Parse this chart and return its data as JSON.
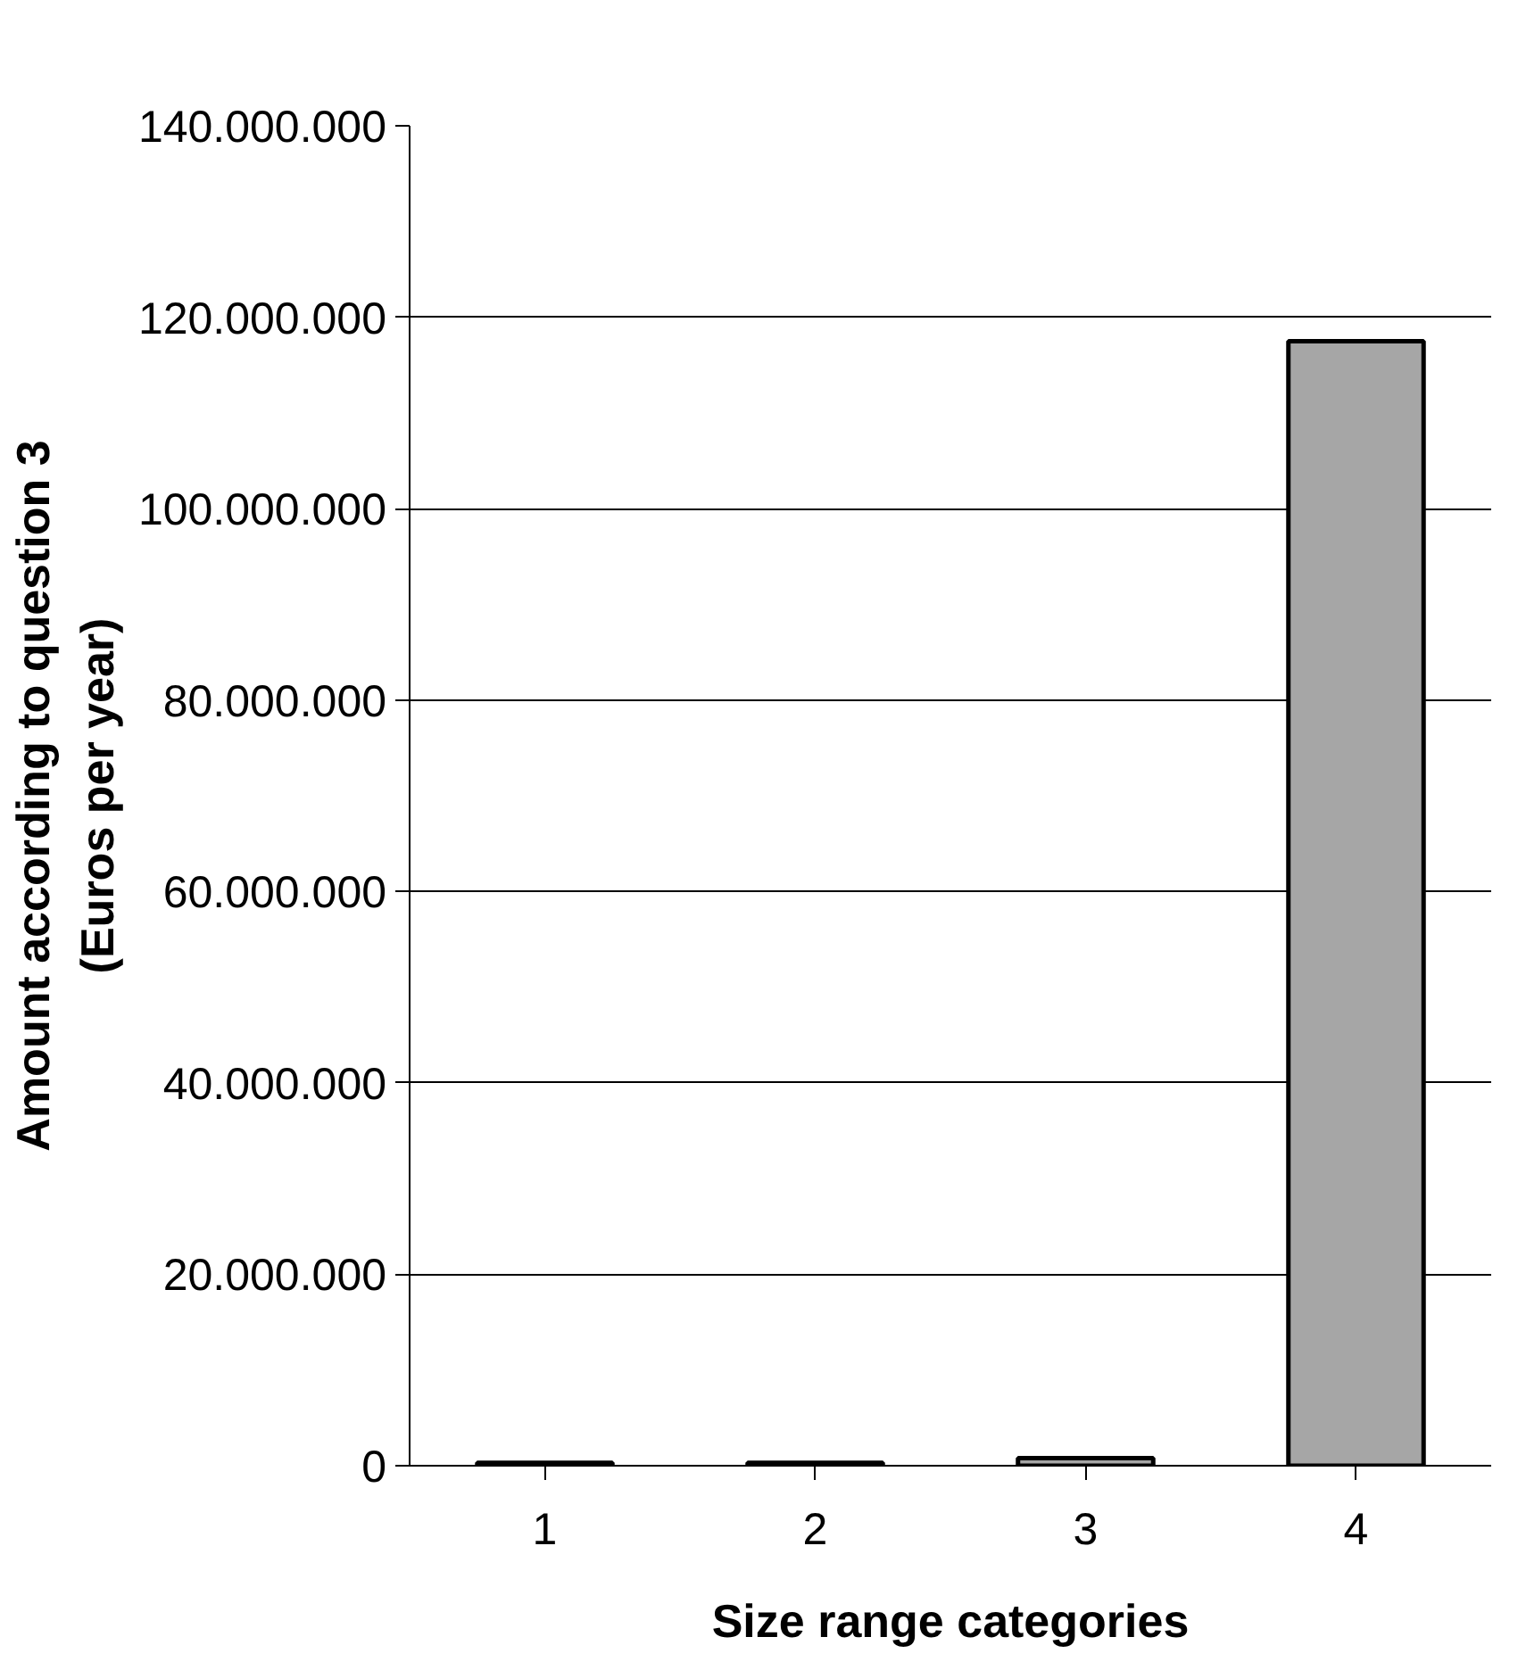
{
  "chart_data": {
    "type": "bar",
    "xlabel": "Size range categories",
    "ylabel": "Amount according to question 3\n(Euros per year)",
    "categories": [
      "1",
      "2",
      "3",
      "4"
    ],
    "values": [
      300000,
      300000,
      800000,
      117500000
    ],
    "color": "#a6a6a6",
    "ylim": [
      0,
      140000000
    ],
    "yticks": [
      {
        "value": 0,
        "label": "0"
      },
      {
        "value": 20000000,
        "label": "20.000.000"
      },
      {
        "value": 40000000,
        "label": "40.000.000"
      },
      {
        "value": 60000000,
        "label": "60.000.000"
      },
      {
        "value": 80000000,
        "label": "80.000.000"
      },
      {
        "value": 100000000,
        "label": "100.000.000"
      },
      {
        "value": 120000000,
        "label": "120.000.000"
      },
      {
        "value": 140000000,
        "label": "140.000.000"
      }
    ],
    "grid": "y"
  }
}
